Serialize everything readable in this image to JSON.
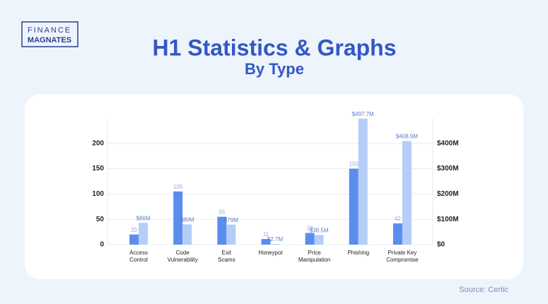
{
  "logo": {
    "line1": "FINANCE",
    "line2": "MAGNATES"
  },
  "source": "Source: Certic",
  "chart_data": {
    "type": "bar",
    "title": "H1 Statistics & Graphs",
    "subtitle": "By Type",
    "categories": [
      "Access\nControl",
      "Code\nVulnerability",
      "Exit\nScams",
      "Honeypot",
      "Price\nManipulation",
      "Phishing",
      "Private Key\nCompromise"
    ],
    "series": [
      {
        "color": "#5b8def",
        "values": [
          20,
          105,
          55,
          11,
          23,
          150,
          42
        ]
      },
      {
        "color": "#b5cdf9",
        "axis": "y2",
        "values": [
          86,
          80,
          79,
          2.7,
          38.5,
          497.7,
          408.9
        ],
        "value_labels": [
          "$86M",
          "$80M",
          "$79M",
          "$2.7M",
          "$38.5M",
          "$497.7M",
          "$408.9M"
        ]
      }
    ],
    "ylim": [
      0,
      250
    ],
    "yticks": [
      0,
      50,
      100,
      150,
      200
    ],
    "y2lim": [
      0,
      500
    ],
    "y2ticks": [
      {
        "value": 0,
        "label": "$0"
      },
      {
        "value": 100,
        "label": "$100M"
      },
      {
        "value": 200,
        "label": "$200M"
      },
      {
        "value": 300,
        "label": "$300M"
      },
      {
        "value": 400,
        "label": "$400M"
      }
    ],
    "grid": true
  }
}
